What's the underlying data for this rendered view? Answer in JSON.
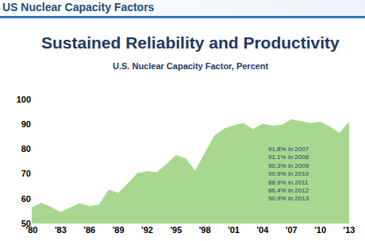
{
  "header": "US Nuclear Capacity Factors",
  "chart_data": {
    "type": "area",
    "title": "Sustained Reliability and Productivity",
    "subtitle": "U.S. Nuclear Capacity Factor, Percent",
    "x": [
      1980,
      1981,
      1982,
      1983,
      1984,
      1985,
      1986,
      1987,
      1988,
      1989,
      1990,
      1991,
      1992,
      1993,
      1994,
      1995,
      1996,
      1997,
      1998,
      1999,
      2000,
      2001,
      2002,
      2003,
      2004,
      2005,
      2006,
      2007,
      2008,
      2009,
      2010,
      2011,
      2012,
      2013
    ],
    "values": [
      56.3,
      58.2,
      56.6,
      54.4,
      56.3,
      58.0,
      56.9,
      57.4,
      63.5,
      62.2,
      66.0,
      70.2,
      70.9,
      70.5,
      73.8,
      77.4,
      76.1,
      71.1,
      78.2,
      85.3,
      88.1,
      89.4,
      90.3,
      87.9,
      90.1,
      89.3,
      89.6,
      91.8,
      91.1,
      90.3,
      90.9,
      88.9,
      86.4,
      90.9
    ],
    "color": "#a8d88f",
    "xlim": [
      1980,
      2013
    ],
    "xticks": [
      {
        "value": 1980,
        "label": "'80"
      },
      {
        "value": 1983,
        "label": "'83"
      },
      {
        "value": 1986,
        "label": "'86"
      },
      {
        "value": 1989,
        "label": "'89"
      },
      {
        "value": 1992,
        "label": "'92"
      },
      {
        "value": 1995,
        "label": "'95"
      },
      {
        "value": 1998,
        "label": "'98"
      },
      {
        "value": 2001,
        "label": "'01"
      },
      {
        "value": 2004,
        "label": "'04"
      },
      {
        "value": 2007,
        "label": "'07"
      },
      {
        "value": 2010,
        "label": "'10"
      },
      {
        "value": 2013,
        "label": "'13"
      }
    ],
    "ylim": [
      50,
      100
    ],
    "yticks": [
      50,
      60,
      70,
      80,
      90,
      100
    ],
    "grid": false,
    "annotations": [
      "91.8% in 2007",
      "91.1% in 2008",
      "90.3% in 2009",
      "90.9% in 2010",
      "88.9% in 2011",
      "86.4% in 2012",
      "90.9% in 2013"
    ]
  }
}
